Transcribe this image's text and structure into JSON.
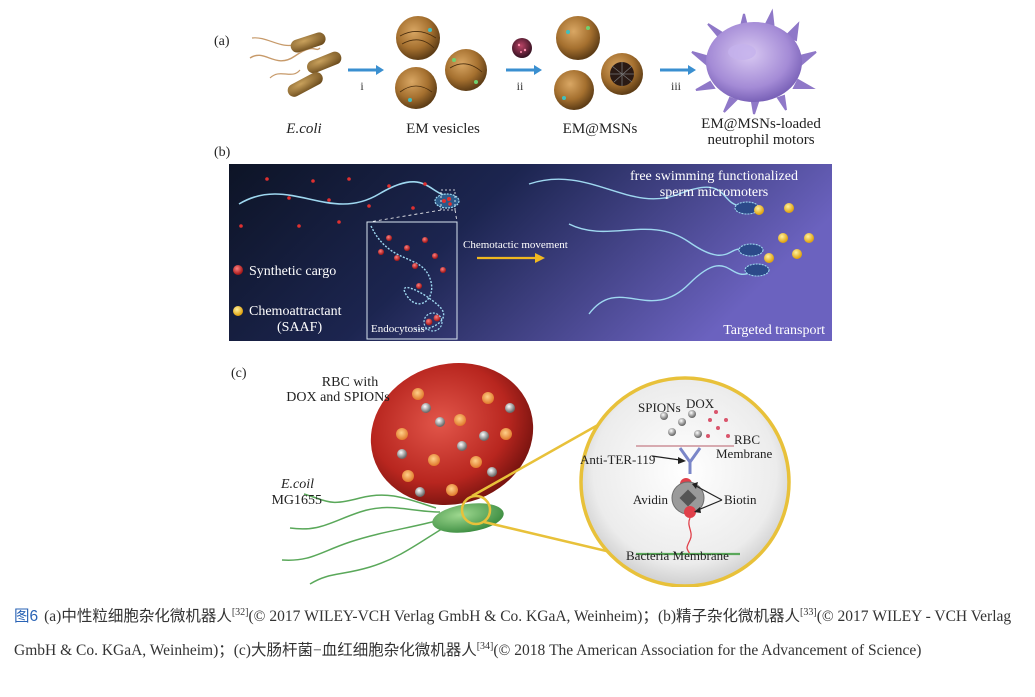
{
  "panel_a": {
    "label": "(a)",
    "step_i": "i",
    "step_ii": "ii",
    "step_iii": "iii",
    "ecoli": "E.coli",
    "em_vesicles": "EM vesicles",
    "em_msns": "EM@MSNs",
    "motors_line1": "EM@MSNs-loaded",
    "motors_line2": "neutrophil motors"
  },
  "panel_b": {
    "label": "(b)",
    "title_line1": "free swimming functionalized",
    "title_line2": "sperm micromoters",
    "chemotactic": "Chemotactic movement",
    "synthetic_cargo": "Synthetic cargo",
    "chemoattractant_line1": "Chemoattractant",
    "chemoattractant_line2": "(SAAF)",
    "endocytosis": "Endocytosis",
    "targeted_transport": "Targeted transport"
  },
  "panel_c": {
    "label": "(c)",
    "rbc_line1": "RBC with",
    "rbc_line2": "DOX and SPIONs",
    "ecoil_line1": "E.coil",
    "ecoil_line2": "MG1655",
    "spions": "SPIONs",
    "dox": "DOX",
    "rbc_membrane_line1": "RBC",
    "rbc_membrane_line2": "Membrane",
    "anti_ter": "Anti-TER-119",
    "avidin": "Avidin",
    "biotin": "Biotin",
    "bacteria_membrane": "Bacteria Membrane"
  },
  "caption": {
    "fig_no": "图6",
    "part_a": "(a)中性粒细胞杂化微机器人",
    "ref_a": "[32]",
    "part_a2": "(© 2017 WILEY-VCH Verlag GmbH & Co. KGaA, Weinheim)；(b)精子杂化微机器人",
    "ref_b": "[33]",
    "part_b2": "(© 2017 WILEY - VCH Verlag GmbH & Co. KGaA, Weinheim)；(c)大肠杆菌−血红细胞杂化微机器人",
    "ref_c": "[34]",
    "part_c2": "(© 2018 The American Association for the Advancement of Science)"
  },
  "colors": {
    "arrow_blue": "#3a8fd0",
    "vesicle_brown": "#9a6a2e",
    "motor_purple": "#a98fd6",
    "rbc_red": "#c8322c",
    "bacteria_green": "#5aa85a",
    "panel_b_dark": "#121a30",
    "panel_b_purple": "#6a5fb8",
    "caption_blue": "#2a63b5"
  }
}
